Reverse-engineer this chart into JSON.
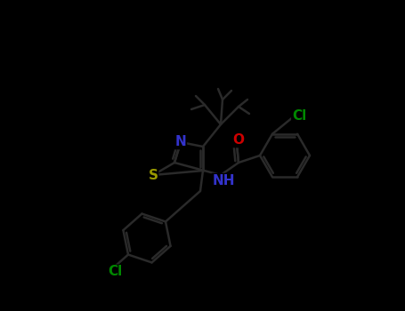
{
  "bg_color": "#000000",
  "atom_colors": {
    "N": "#3333cc",
    "O": "#cc0000",
    "S": "#999900",
    "Cl": "#008800",
    "bond": "#333333"
  },
  "bond_lw": 1.8,
  "font_size": 11
}
